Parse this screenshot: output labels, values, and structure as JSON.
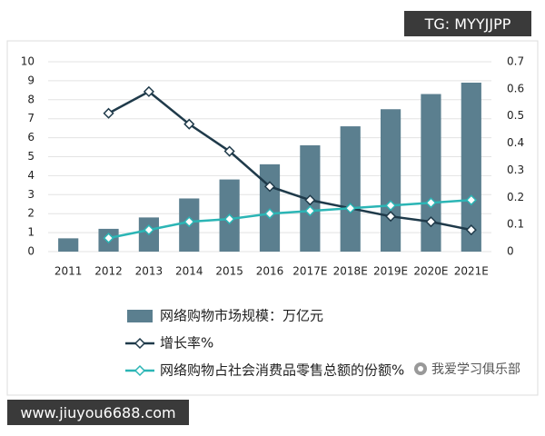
{
  "chart_data": {
    "type": "bar",
    "categories": [
      "2011",
      "2012",
      "2013",
      "2014",
      "2015",
      "2016",
      "2017E",
      "2018E",
      "2019E",
      "2020E",
      "2021E"
    ],
    "series": [
      {
        "name": "网络购物市场规模：万亿元",
        "type": "bar",
        "color": "#5b7f8f",
        "values": [
          0.7,
          1.2,
          1.8,
          2.8,
          3.8,
          4.6,
          5.6,
          6.6,
          7.5,
          8.3,
          8.9
        ]
      },
      {
        "name": "增长率%",
        "type": "line",
        "axis": "y2",
        "color": "#1f3a4a",
        "values": [
          null,
          0.51,
          0.59,
          0.47,
          0.37,
          0.24,
          0.19,
          0.16,
          0.13,
          0.11,
          0.08
        ]
      },
      {
        "name": "网络购物占社会消费品零售总额的份额%",
        "type": "line",
        "axis": "y2",
        "color": "#2bb5b5",
        "values": [
          null,
          0.05,
          0.08,
          0.11,
          0.12,
          0.14,
          0.15,
          0.16,
          0.17,
          0.18,
          0.19
        ]
      }
    ],
    "ylim": [
      0,
      10
    ],
    "yticks": [
      0,
      1,
      2,
      3,
      4,
      5,
      6,
      7,
      8,
      9,
      10
    ],
    "y2lim": [
      0,
      0.7
    ],
    "y2ticks": [
      0,
      0.1,
      0.2,
      0.3,
      0.4,
      0.5,
      0.6,
      0.7
    ],
    "grid": true,
    "legend": "bottom"
  },
  "overlay": {
    "top_badge": "TG: MYYJJPP",
    "bottom_badge": "www.jiuyou6688.com",
    "logo_text": "我爱学习俱乐部"
  }
}
